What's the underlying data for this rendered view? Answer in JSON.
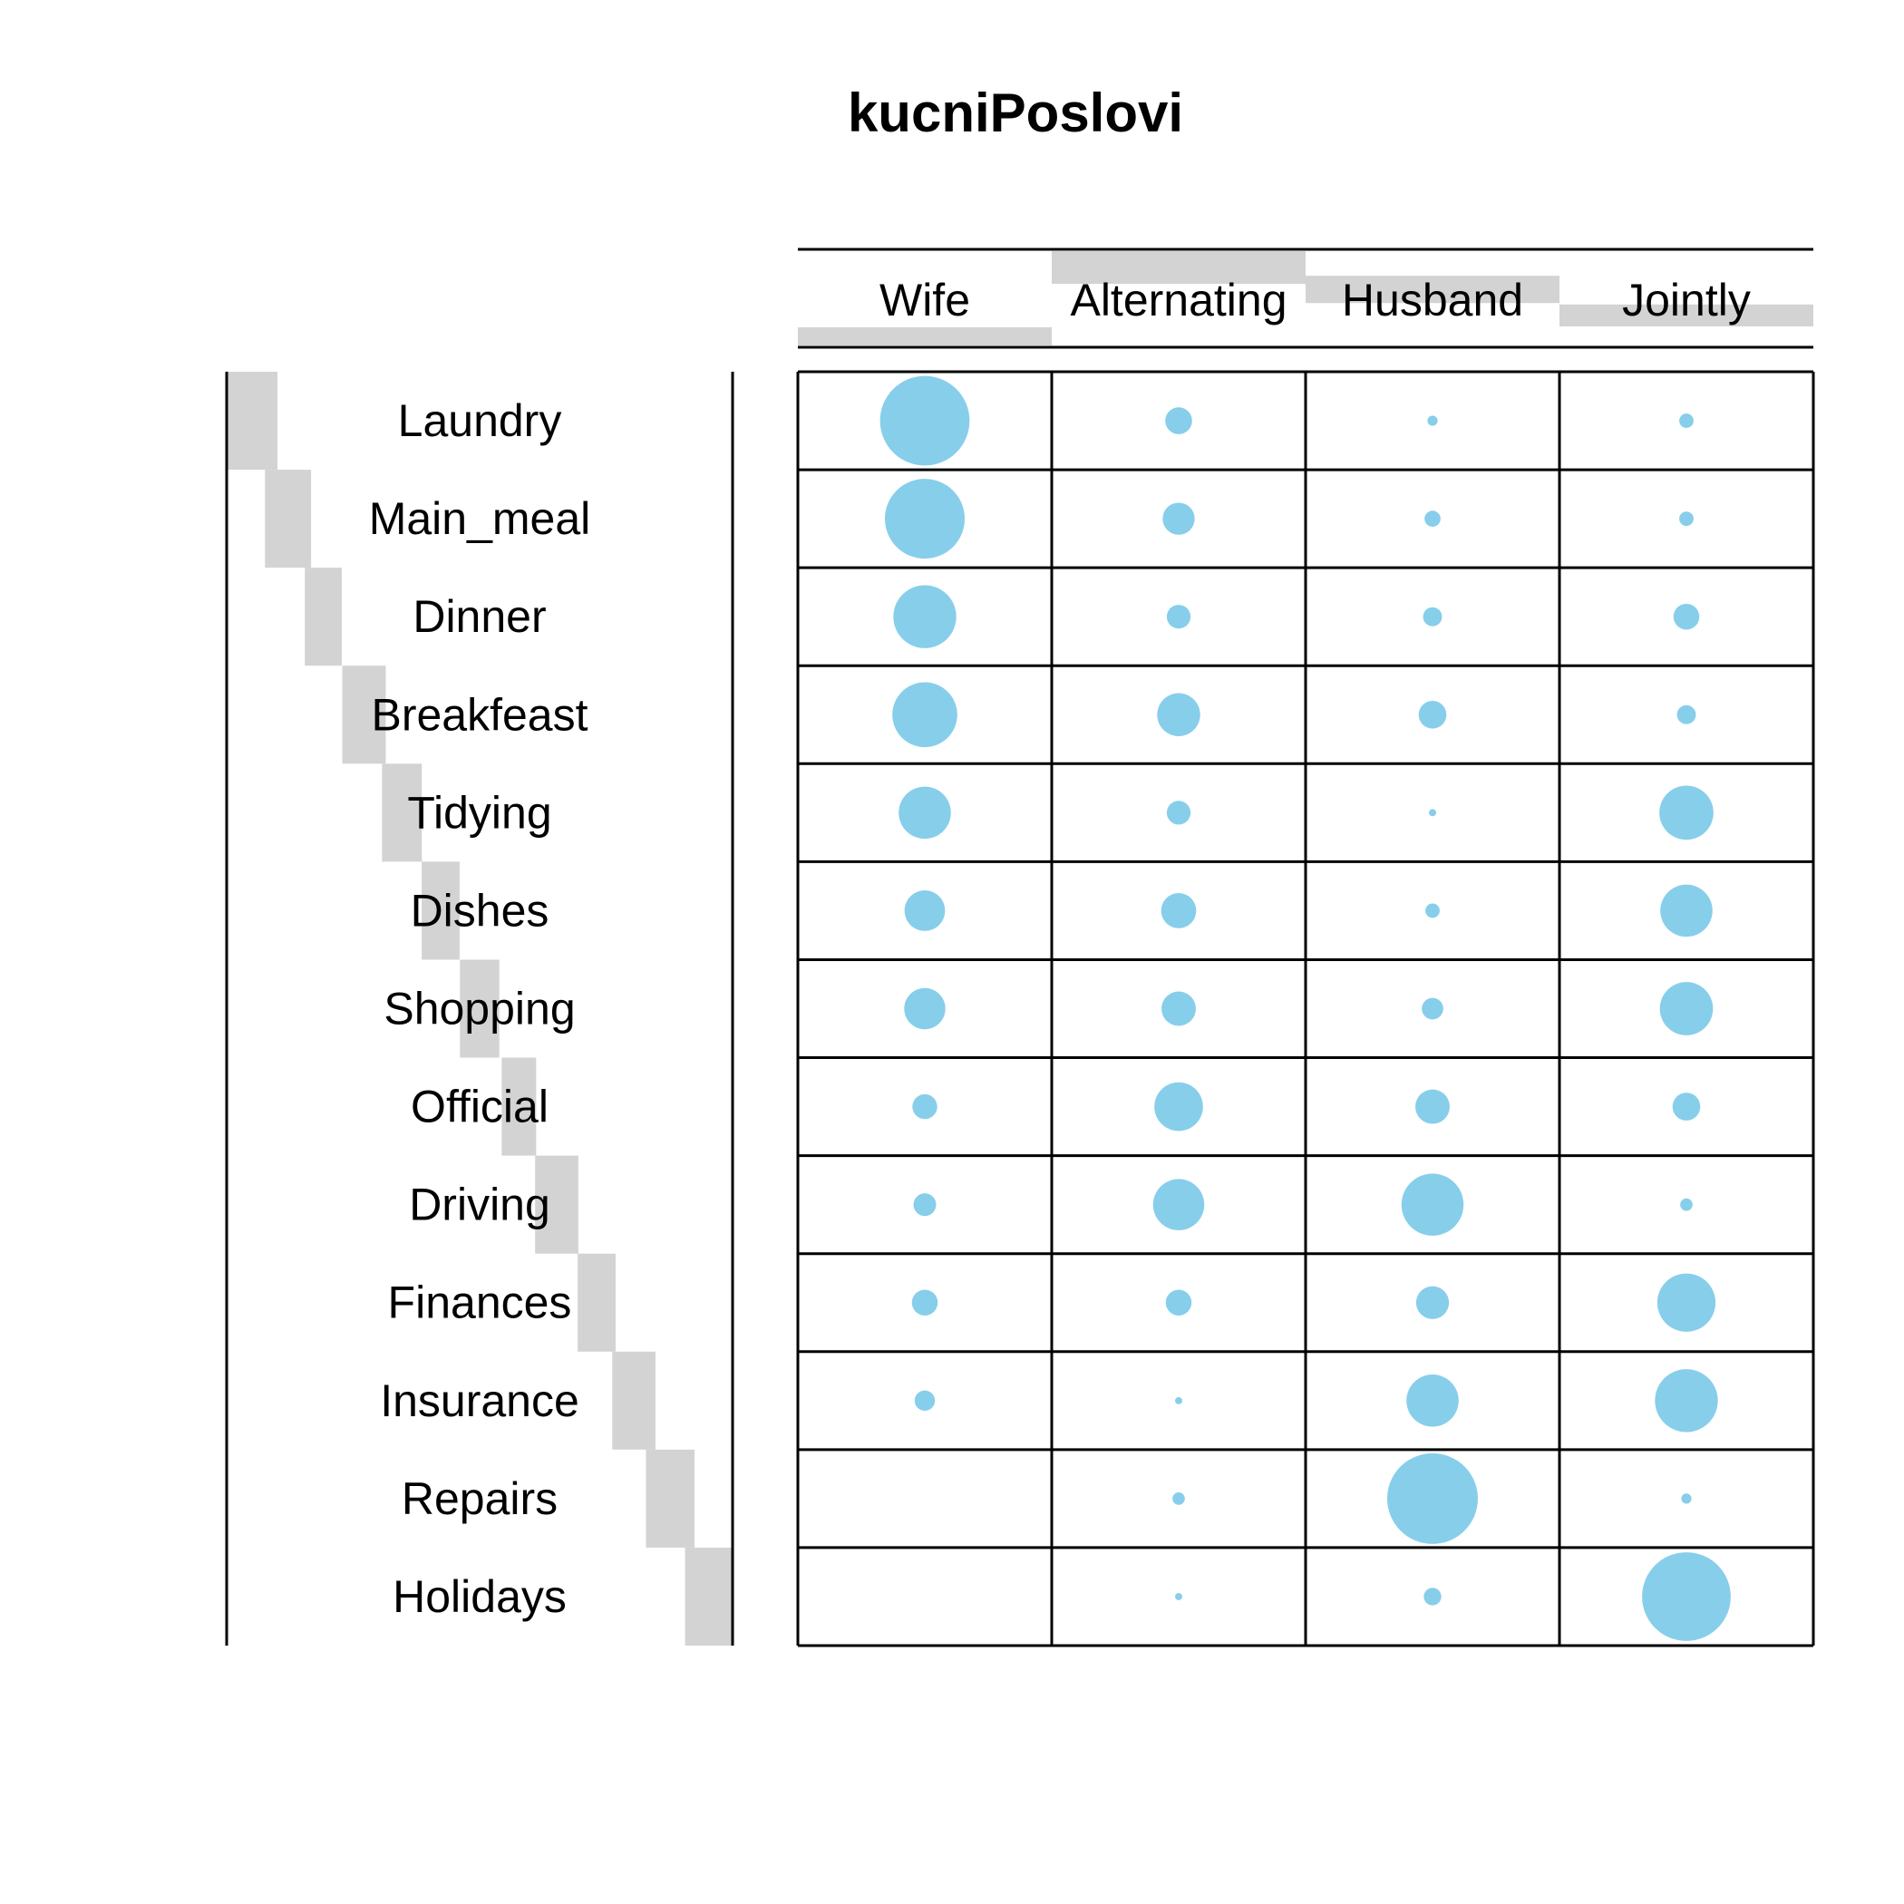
{
  "chart_data": {
    "type": "balloon",
    "title": "kucniPoslovi",
    "columns": [
      "Wife",
      "Alternating",
      "Husband",
      "Jointly"
    ],
    "rows": [
      "Laundry",
      "Main_meal",
      "Dinner",
      "Breakfeast",
      "Tidying",
      "Dishes",
      "Shopping",
      "Official",
      "Driving",
      "Finances",
      "Insurance",
      "Repairs",
      "Holidays"
    ],
    "values": [
      [
        156,
        14,
        2,
        4
      ],
      [
        124,
        20,
        5,
        4
      ],
      [
        77,
        11,
        7,
        13
      ],
      [
        82,
        36,
        15,
        7
      ],
      [
        53,
        11,
        1,
        57
      ],
      [
        32,
        24,
        4,
        53
      ],
      [
        33,
        23,
        9,
        55
      ],
      [
        12,
        46,
        23,
        15
      ],
      [
        10,
        51,
        75,
        3
      ],
      [
        13,
        13,
        21,
        66
      ],
      [
        8,
        1,
        53,
        77
      ],
      [
        0,
        3,
        160,
        2
      ],
      [
        0,
        1,
        6,
        153
      ]
    ],
    "max_value": 160,
    "point_color": "#87CEEB",
    "margin_bar_color": "#D3D3D3",
    "grid": true
  }
}
